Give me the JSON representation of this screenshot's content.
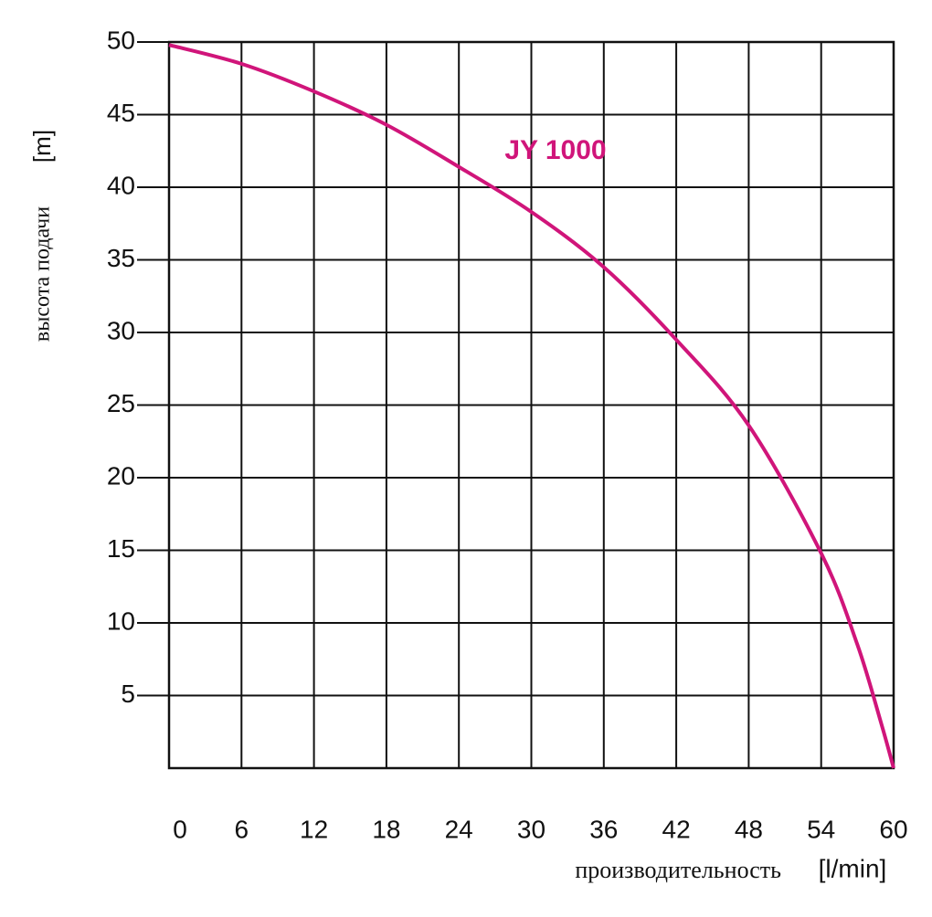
{
  "chart_data": {
    "type": "line",
    "ylabel": "высота подачи",
    "yunit": "[m]",
    "xlabel": "производительность",
    "xunit": "[l/min]",
    "x": [
      0,
      6,
      12,
      18,
      24,
      30,
      36,
      42,
      48,
      54,
      57,
      59,
      60
    ],
    "series": [
      {
        "name": "JY 1000",
        "color": "#d0157a",
        "values": [
          49.8,
          48.5,
          46.6,
          44.3,
          41.4,
          38.3,
          34.5,
          29.5,
          23.6,
          14.8,
          8.5,
          3,
          0
        ]
      }
    ],
    "xlim": [
      0,
      60
    ],
    "xticks": [
      0,
      6,
      12,
      18,
      24,
      30,
      36,
      42,
      48,
      54,
      60
    ],
    "ylim": [
      0,
      50
    ],
    "yticks": [
      5,
      10,
      15,
      20,
      25,
      30,
      35,
      40,
      45,
      50
    ],
    "grid": true
  }
}
